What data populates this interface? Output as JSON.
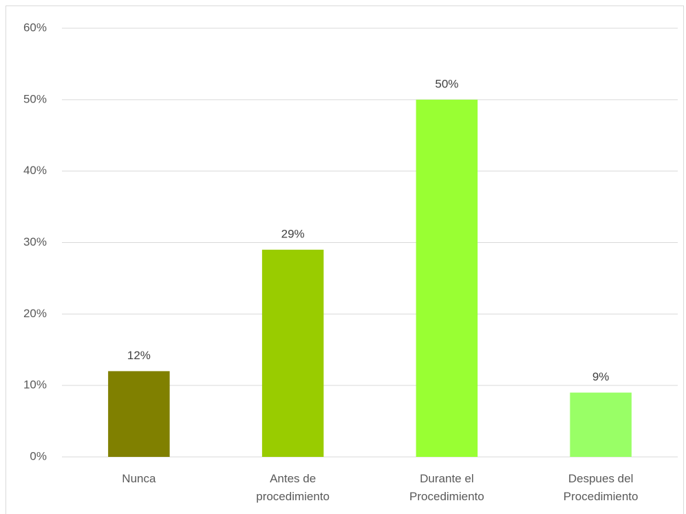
{
  "chart_data": {
    "type": "bar",
    "categories": [
      "Nunca",
      "Antes de procedimiento",
      "Durante el Procedimiento",
      "Despues del Procedimiento"
    ],
    "values": [
      12,
      29,
      50,
      9
    ],
    "value_labels": [
      "12%",
      "29%",
      "50%",
      "9%"
    ],
    "colors": [
      "#808000",
      "#99cc00",
      "#99ff33",
      "#99ff66"
    ],
    "ylim": [
      0,
      60
    ],
    "yticks": [
      {
        "value": 0,
        "label": "0%"
      },
      {
        "value": 10,
        "label": "10%"
      },
      {
        "value": 20,
        "label": "20%"
      },
      {
        "value": 30,
        "label": "30%"
      },
      {
        "value": 40,
        "label": "40%"
      },
      {
        "value": 50,
        "label": "50%"
      },
      {
        "value": 60,
        "label": "60%"
      }
    ],
    "grid": true
  }
}
